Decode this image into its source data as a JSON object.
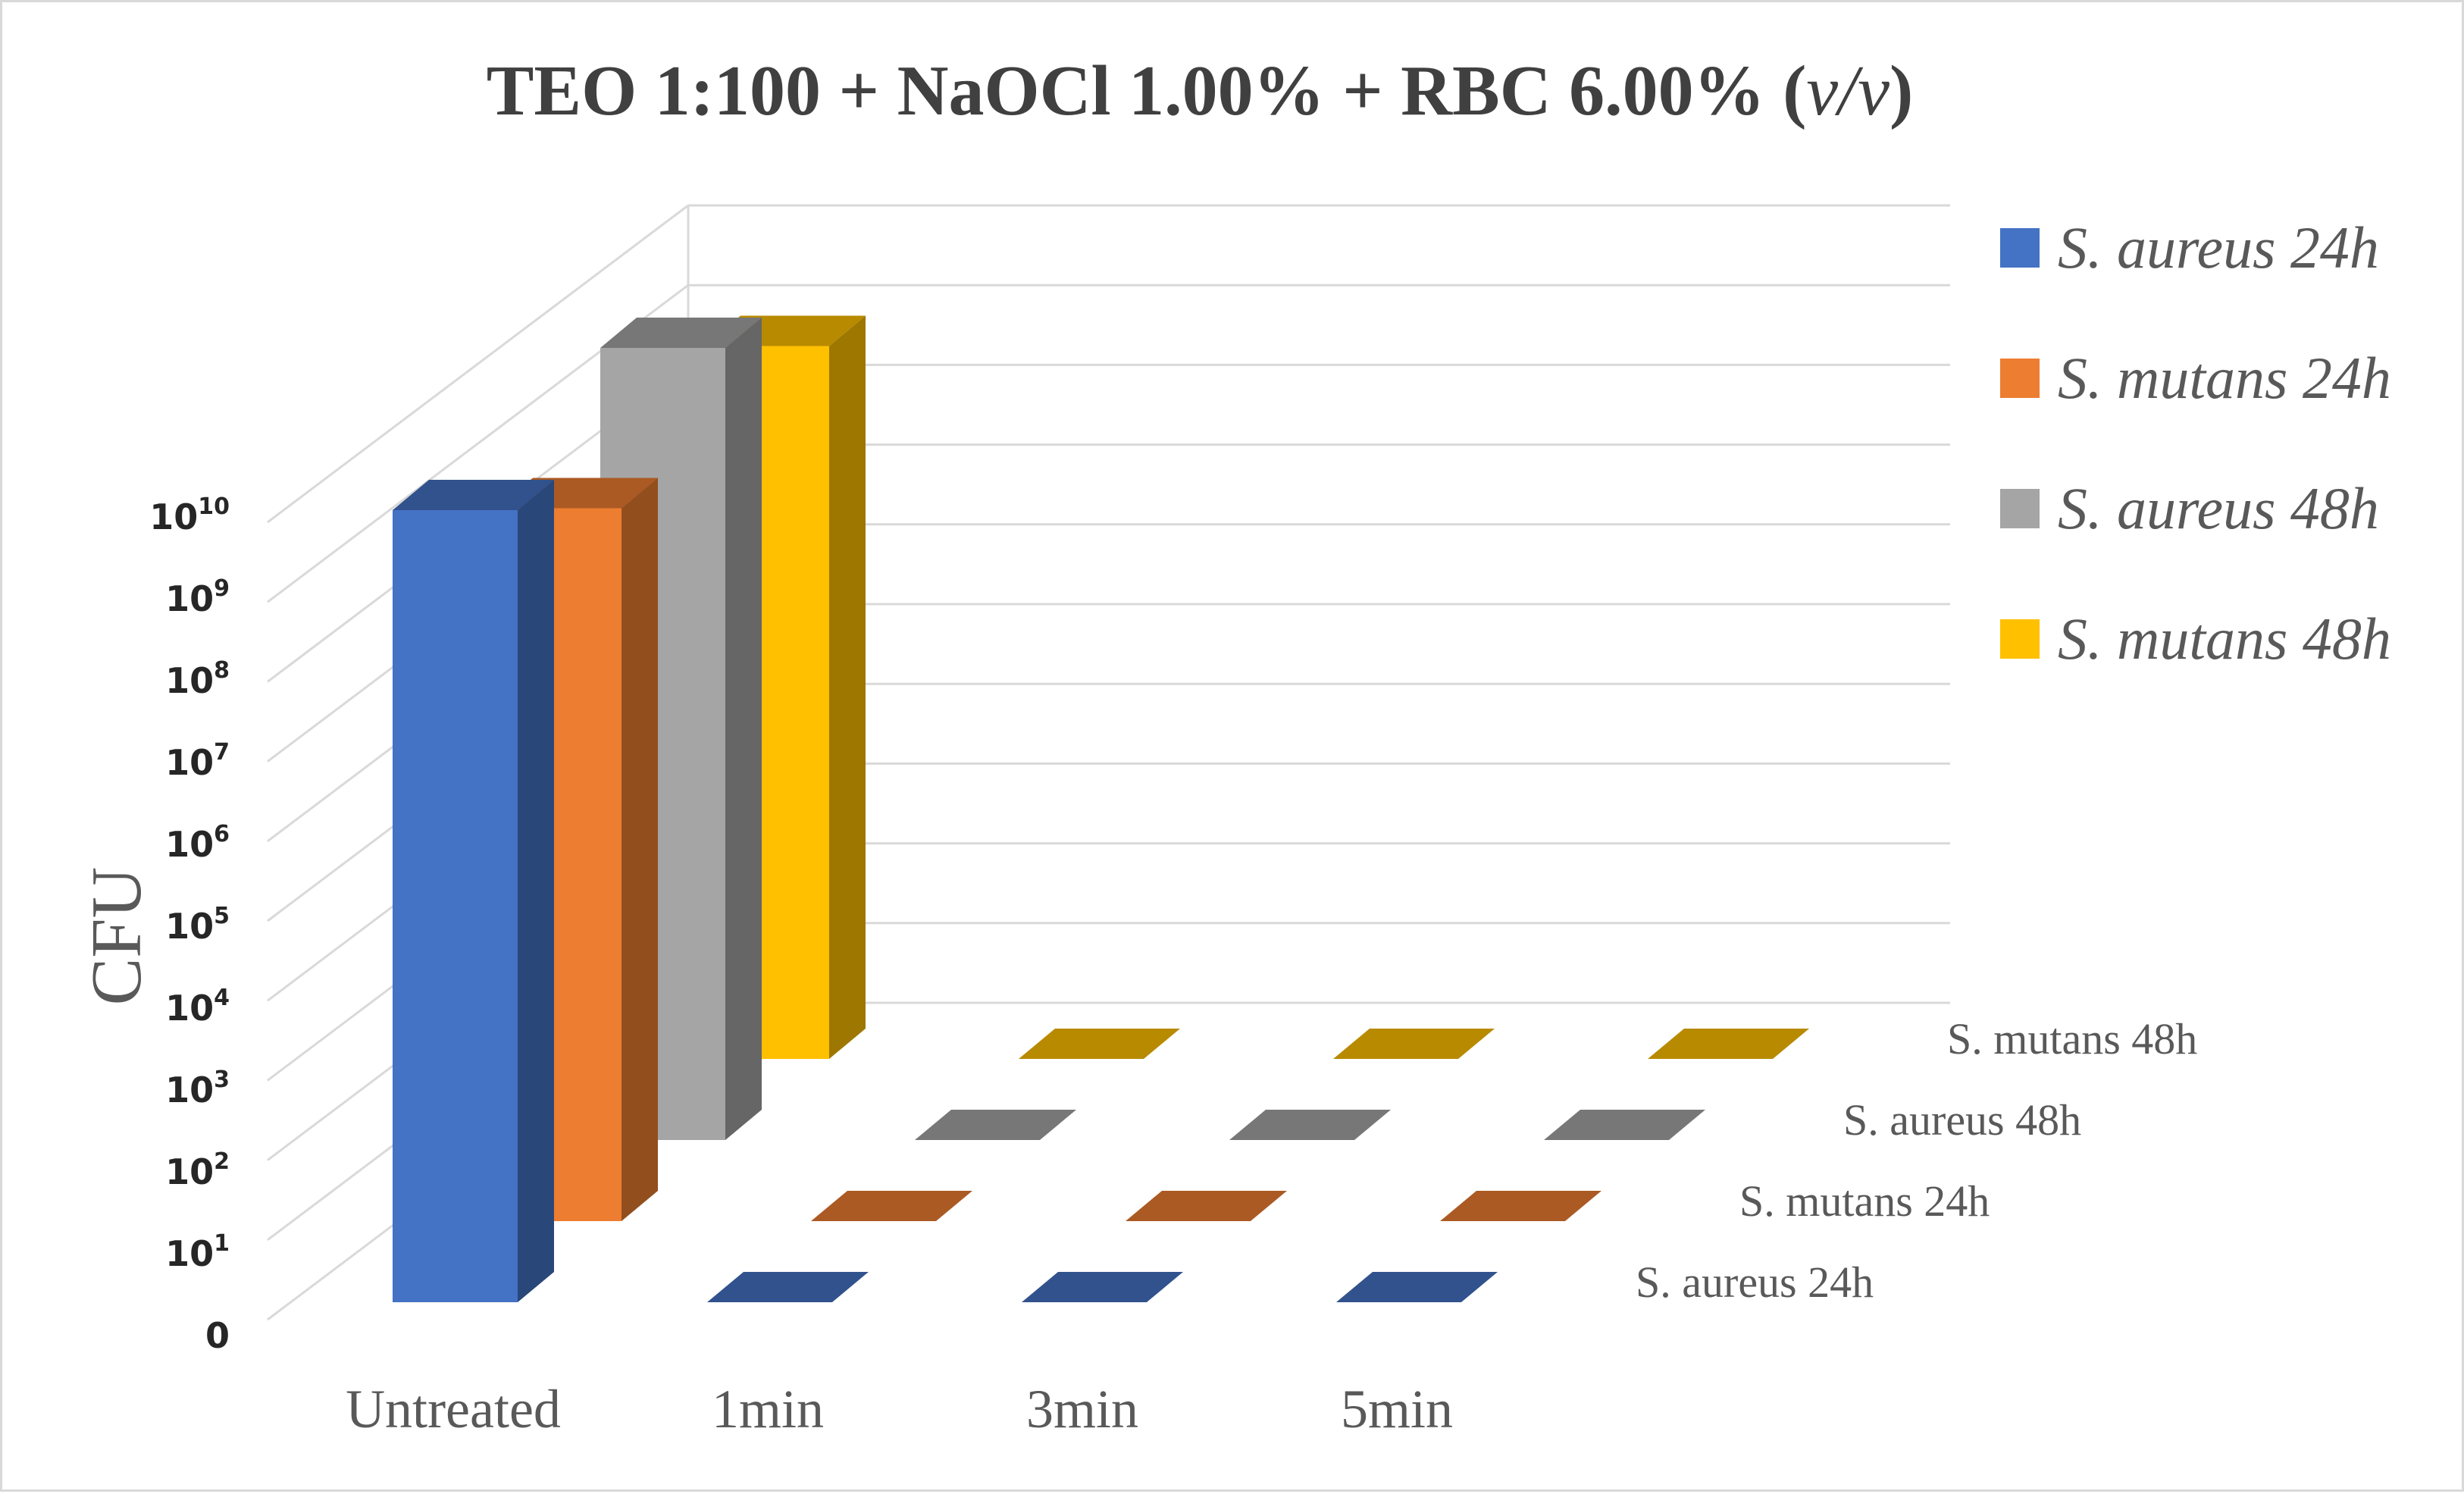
{
  "chart_data": {
    "type": "bar",
    "subtype": "3d-clustered-column",
    "title": {
      "parts": [
        {
          "text": "TEO 1:100 + NaOCl 1.00% + RBC 6.00% (",
          "italic": false
        },
        {
          "text": "v/v",
          "italic": true
        },
        {
          "text": ")",
          "italic": false
        }
      ]
    },
    "xlabel": "",
    "ylabel": "CFU",
    "y_scale": "log",
    "y_ticks": [
      {
        "base": "0",
        "exp": ""
      },
      {
        "base": "10",
        "exp": "1"
      },
      {
        "base": "10",
        "exp": "2"
      },
      {
        "base": "10",
        "exp": "3"
      },
      {
        "base": "10",
        "exp": "4"
      },
      {
        "base": "10",
        "exp": "5"
      },
      {
        "base": "10",
        "exp": "6"
      },
      {
        "base": "10",
        "exp": "7"
      },
      {
        "base": "10",
        "exp": "8"
      },
      {
        "base": "10",
        "exp": "9"
      },
      {
        "base": "10",
        "exp": "10"
      }
    ],
    "categories": [
      "Untreated",
      "1min",
      "3min",
      "5min"
    ],
    "series": [
      {
        "name": "S. aureus 24h",
        "depth_label": "S. aureus 24h",
        "color": "#4472C4",
        "values": [
          10000000000,
          0,
          0,
          0
        ]
      },
      {
        "name": "S. mutans 24h",
        "depth_label": "S. mutans 24h",
        "color": "#ED7D31",
        "values": [
          1000000000,
          0,
          0,
          0
        ]
      },
      {
        "name": "S. aureus 48h",
        "depth_label": "S. aureus 48h",
        "color": "#A5A5A5",
        "values": [
          10000000000,
          0,
          0,
          0
        ]
      },
      {
        "name": "S. mutans 48h",
        "depth_label": "S. mutans 48h",
        "color": "#FFC000",
        "values": [
          1000000000,
          0,
          0,
          0
        ]
      }
    ],
    "legend_position": "right",
    "grid": true
  }
}
